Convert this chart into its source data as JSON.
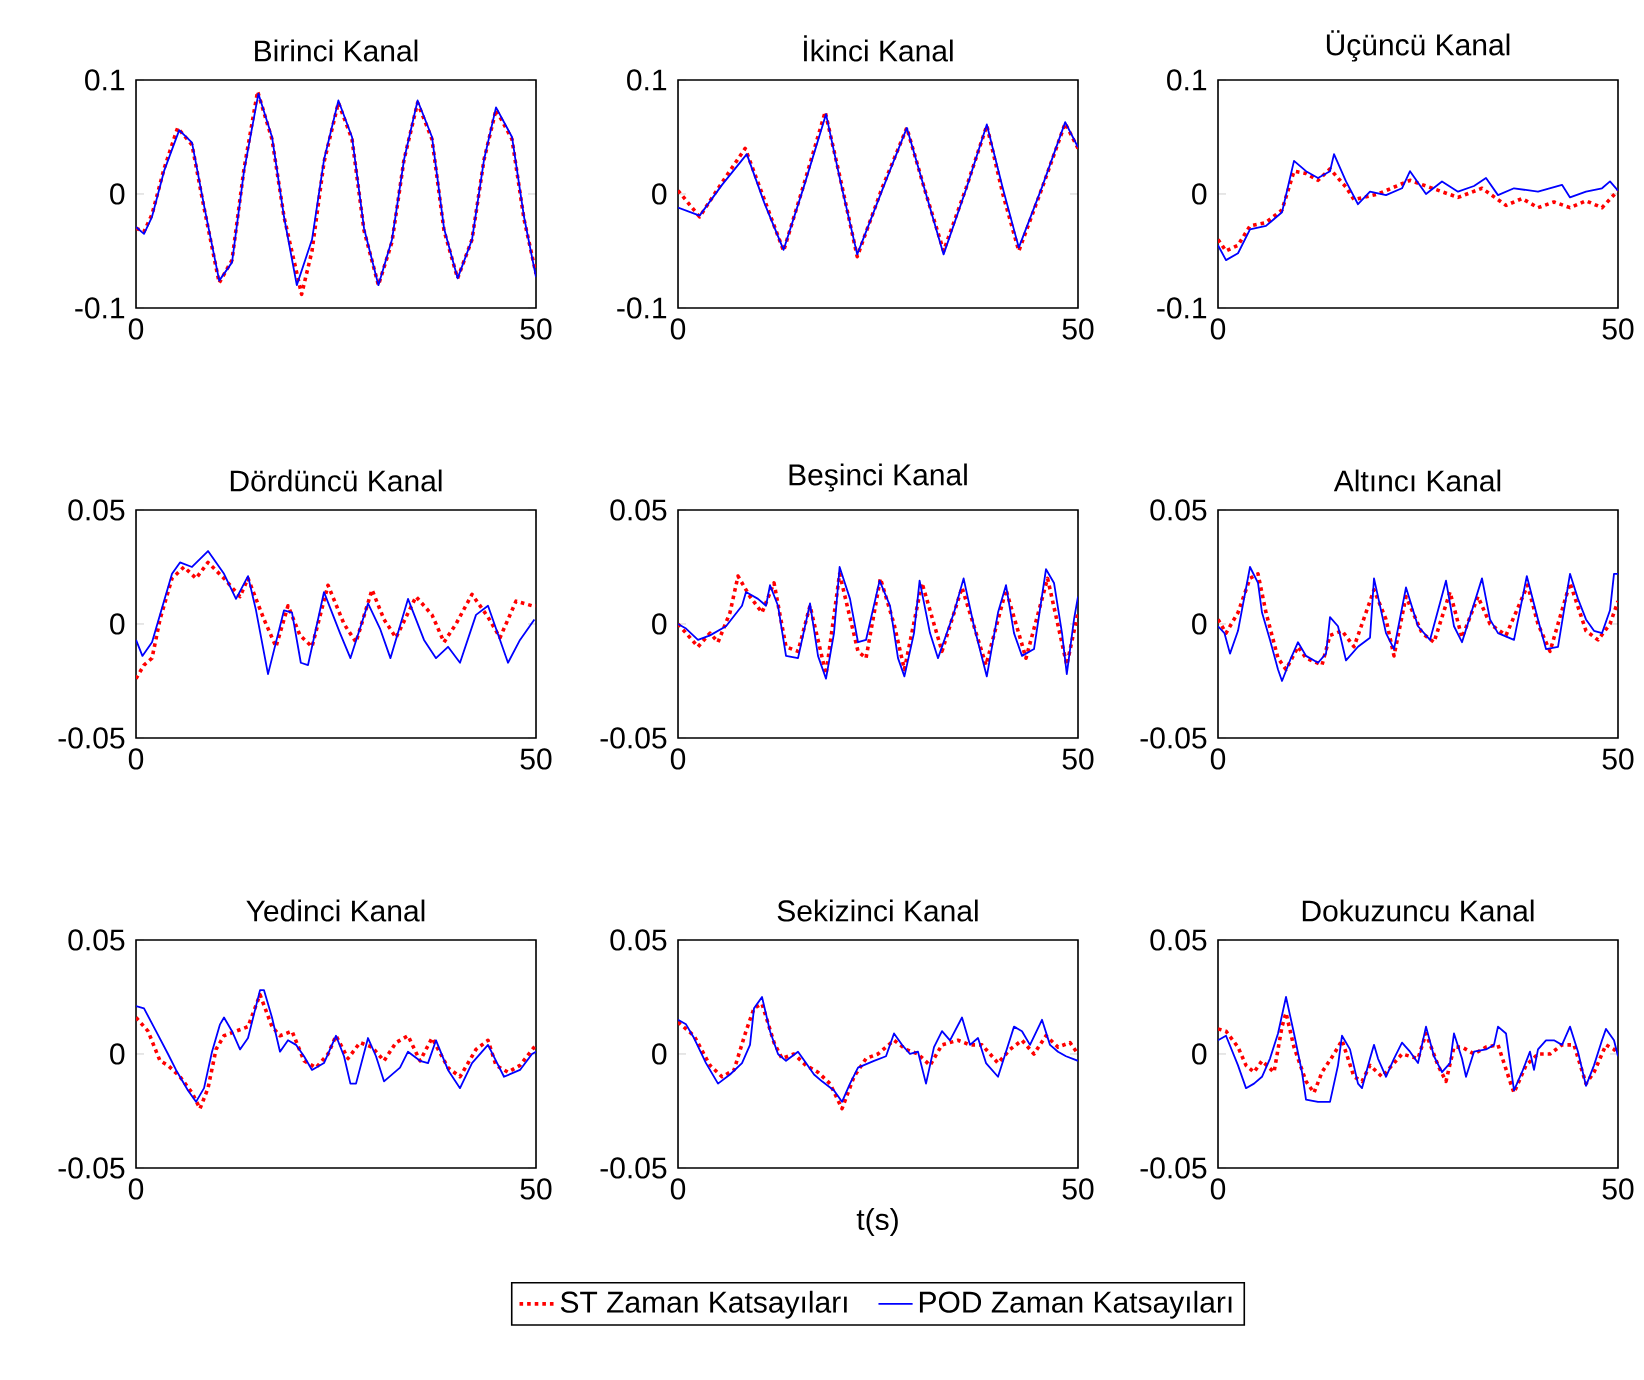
{
  "chart_data": [
    {
      "type": "line",
      "title": "Birinci Kanal",
      "xlim": [
        0,
        50
      ],
      "ylim": [
        -0.1,
        0.1
      ],
      "xticks": [
        0,
        50
      ],
      "yticks": [
        -0.1,
        0,
        0.1
      ],
      "series": [
        {
          "color": "#ff0000",
          "line_style": "dotted",
          "x": [
            0,
            1,
            2,
            3.5,
            5.2,
            7,
            8.5,
            10.4,
            12,
            13.5,
            15.2,
            17,
            18.5,
            20.7,
            22,
            23.5,
            25.3,
            27,
            28.5,
            30.3,
            32,
            33.5,
            35.2,
            37,
            38.5,
            40.2,
            42,
            43.5,
            45,
            47,
            48.5,
            50
          ],
          "values": [
            -0.03,
            -0.033,
            -0.018,
            0.022,
            0.058,
            0.043,
            -0.012,
            -0.078,
            -0.058,
            0.022,
            0.09,
            0.048,
            -0.02,
            -0.088,
            -0.05,
            0.028,
            0.08,
            0.048,
            -0.032,
            -0.08,
            -0.042,
            0.03,
            0.08,
            0.048,
            -0.032,
            -0.074,
            -0.04,
            0.03,
            0.074,
            0.048,
            -0.022,
            -0.07
          ]
        },
        {
          "color": "#0000ff",
          "line_style": "solid",
          "x": [
            0,
            1,
            2,
            3.5,
            5.4,
            7,
            8.5,
            10.4,
            12,
            13.5,
            15.3,
            17,
            18.5,
            20.1,
            22,
            23.5,
            25.3,
            27,
            28.5,
            30.3,
            32,
            33.5,
            35.2,
            37,
            38.5,
            40.2,
            42,
            43.5,
            45,
            47,
            48.5,
            50
          ],
          "values": [
            -0.029,
            -0.035,
            -0.02,
            0.02,
            0.056,
            0.045,
            -0.01,
            -0.076,
            -0.06,
            0.02,
            0.088,
            0.05,
            -0.02,
            -0.08,
            -0.04,
            0.03,
            0.082,
            0.05,
            -0.03,
            -0.08,
            -0.04,
            0.03,
            0.082,
            0.05,
            -0.03,
            -0.074,
            -0.04,
            0.03,
            0.076,
            0.05,
            -0.02,
            -0.073
          ]
        }
      ]
    },
    {
      "type": "line",
      "title": "İkinci Kanal",
      "xlim": [
        0,
        50
      ],
      "ylim": [
        -0.1,
        0.1
      ],
      "xticks": [
        0,
        50
      ],
      "yticks": [
        -0.1,
        0,
        0.1
      ],
      "series": [
        {
          "color": "#ff0000",
          "line_style": "dotted",
          "x": [
            0,
            2.7,
            5.5,
            8.4,
            10.8,
            13.2,
            15.8,
            18.4,
            20.4,
            22.4,
            25.5,
            28.6,
            31,
            33.2,
            36,
            38.6,
            40.6,
            42.6,
            45.5,
            48.4,
            50
          ],
          "values": [
            0.003,
            -0.02,
            0.01,
            0.04,
            -0.005,
            -0.05,
            0.01,
            0.072,
            0.01,
            -0.055,
            0.005,
            0.058,
            0.0,
            -0.05,
            0.005,
            0.06,
            0.0,
            -0.05,
            0.005,
            0.062,
            0.04
          ]
        },
        {
          "color": "#0000ff",
          "line_style": "solid",
          "x": [
            0,
            2.7,
            5.5,
            8.6,
            10.8,
            13.2,
            15.8,
            18.5,
            20.4,
            22.4,
            25.5,
            28.6,
            31,
            33.2,
            36,
            38.6,
            40.6,
            42.6,
            45.5,
            48.4,
            50
          ],
          "values": [
            -0.012,
            -0.019,
            0.008,
            0.035,
            -0.008,
            -0.049,
            0.008,
            0.07,
            0.008,
            -0.053,
            0.003,
            0.058,
            0.0,
            -0.053,
            0.004,
            0.061,
            0.005,
            -0.047,
            0.006,
            0.063,
            0.041
          ]
        }
      ]
    },
    {
      "type": "line",
      "title": "Üçüncü Kanal",
      "xlim": [
        0,
        50
      ],
      "ylim": [
        -0.1,
        0.1
      ],
      "xticks": [
        0,
        50
      ],
      "yticks": [
        -0.1,
        0,
        0.1
      ],
      "series": [
        {
          "color": "#ff0000",
          "line_style": "dotted",
          "x": [
            0,
            1,
            2.5,
            4,
            6,
            8,
            9.5,
            11,
            12.5,
            14,
            16,
            17,
            20,
            24,
            28,
            30,
            33,
            36,
            38,
            40,
            42,
            44,
            46,
            48,
            50
          ],
          "values": [
            -0.04,
            -0.05,
            -0.045,
            -0.028,
            -0.025,
            -0.014,
            0.02,
            0.018,
            0.012,
            0.022,
            0.006,
            -0.005,
            0.0,
            0.012,
            0.002,
            -0.003,
            0.005,
            -0.01,
            -0.004,
            -0.012,
            -0.007,
            -0.012,
            -0.006,
            -0.012,
            0.003
          ]
        },
        {
          "color": "#0000ff",
          "line_style": "solid",
          "x": [
            0,
            1,
            2.5,
            4,
            6,
            8,
            9,
            9.5,
            11,
            12.5,
            14,
            14.5,
            16,
            17.5,
            19,
            21,
            23,
            24,
            26,
            28,
            30,
            32,
            33.5,
            35,
            37,
            40,
            43,
            44,
            46,
            48,
            49,
            50
          ],
          "values": [
            -0.045,
            -0.058,
            -0.052,
            -0.031,
            -0.028,
            -0.016,
            0.014,
            0.029,
            0.02,
            0.014,
            0.02,
            0.035,
            0.011,
            -0.009,
            0.002,
            -0.001,
            0.005,
            0.02,
            0.0,
            0.011,
            0.002,
            0.007,
            0.014,
            -0.001,
            0.005,
            0.002,
            0.008,
            -0.003,
            0.002,
            0.005,
            0.011,
            0.003
          ]
        }
      ]
    },
    {
      "type": "line",
      "title": "Dördüncü Kanal",
      "xlim": [
        0,
        50
      ],
      "ylim": [
        -0.05,
        0.05
      ],
      "xticks": [
        0,
        50
      ],
      "yticks": [
        -0.05,
        0,
        0.05
      ],
      "series": [
        {
          "color": "#ff0000",
          "line_style": "dotted",
          "x": [
            0,
            1,
            2,
            3,
            4.5,
            6,
            7.5,
            9,
            11,
            13,
            14,
            16,
            17.5,
            19,
            20.5,
            22,
            24,
            26,
            27.5,
            29.5,
            31,
            32.5,
            35,
            37,
            38.5,
            40,
            42,
            44,
            45.5,
            47.5,
            49.5,
            50
          ],
          "values": [
            -0.024,
            -0.018,
            -0.015,
            0.002,
            0.02,
            0.025,
            0.02,
            0.027,
            0.02,
            0.012,
            0.02,
            0.002,
            -0.01,
            0.008,
            -0.005,
            -0.01,
            0.017,
            0.0,
            -0.008,
            0.015,
            0.002,
            -0.006,
            0.012,
            0.004,
            -0.008,
            0.0,
            0.013,
            0.003,
            -0.006,
            0.01,
            0.008,
            0.008
          ]
        },
        {
          "color": "#0000ff",
          "line_style": "solid",
          "x": [
            0,
            0.8,
            2,
            3,
            4.5,
            5.5,
            7,
            9,
            11,
            12.5,
            14,
            15,
            16.5,
            18.5,
            19.5,
            20.6,
            21.5,
            23.5,
            25.5,
            26.8,
            29,
            30.5,
            31.8,
            34,
            36,
            37.5,
            39,
            40.5,
            42.5,
            44,
            46.5,
            48,
            49.8
          ],
          "values": [
            -0.007,
            -0.014,
            -0.008,
            0.004,
            0.022,
            0.027,
            0.025,
            0.032,
            0.022,
            0.011,
            0.021,
            0.006,
            -0.022,
            0.006,
            0.005,
            -0.017,
            -0.018,
            0.014,
            -0.004,
            -0.015,
            0.009,
            -0.002,
            -0.015,
            0.011,
            -0.007,
            -0.015,
            -0.01,
            -0.017,
            0.004,
            0.008,
            -0.017,
            -0.007,
            0.002
          ]
        }
      ]
    },
    {
      "type": "line",
      "title": "Beşinci Kanal",
      "xlim": [
        0,
        50
      ],
      "ylim": [
        -0.05,
        0.05
      ],
      "xticks": [
        0,
        50
      ],
      "yticks": [
        -0.05,
        0,
        0.05
      ],
      "series": [
        {
          "color": "#ff0000",
          "line_style": "dotted",
          "x": [
            0,
            2.5,
            4,
            5,
            6.5,
            7.5,
            9,
            10.5,
            12,
            13.5,
            15,
            16.5,
            18.5,
            20.2,
            22.5,
            23.5,
            25.3,
            27,
            28.3,
            30.5,
            33,
            35.5,
            38.5,
            41,
            43.5,
            46.2,
            48.6,
            50
          ],
          "values": [
            0.0,
            -0.01,
            -0.004,
            -0.008,
            0.005,
            0.021,
            0.012,
            0.005,
            0.018,
            -0.01,
            -0.012,
            0.008,
            -0.022,
            0.022,
            -0.012,
            -0.015,
            0.02,
            0.0,
            -0.02,
            0.018,
            -0.012,
            0.016,
            -0.018,
            0.015,
            -0.015,
            0.02,
            -0.018,
            0.005
          ]
        },
        {
          "color": "#0000ff",
          "line_style": "solid",
          "x": [
            0,
            1,
            2.5,
            4,
            6,
            8,
            8.5,
            10,
            11,
            11.5,
            12.5,
            13.5,
            15,
            16.5,
            17.5,
            18.5,
            19.5,
            20.2,
            21.5,
            22.5,
            23.5,
            25.2,
            26.5,
            27.5,
            28.3,
            29.5,
            30.2,
            31.5,
            32.5,
            34.5,
            35.7,
            37,
            38.6,
            40,
            41,
            42,
            43,
            44.5,
            46,
            47,
            48,
            48.6,
            49.5,
            50
          ],
          "values": [
            0.0,
            -0.002,
            -0.007,
            -0.005,
            -0.001,
            0.008,
            0.014,
            0.011,
            0.008,
            0.017,
            0.008,
            -0.014,
            -0.015,
            0.009,
            -0.014,
            -0.024,
            -0.004,
            0.025,
            0.011,
            -0.008,
            -0.007,
            0.019,
            0.008,
            -0.015,
            -0.023,
            -0.004,
            0.019,
            -0.004,
            -0.015,
            0.005,
            0.02,
            -0.001,
            -0.023,
            0.005,
            0.017,
            -0.004,
            -0.014,
            -0.011,
            0.024,
            0.018,
            -0.004,
            -0.022,
            0.002,
            0.012
          ]
        }
      ]
    },
    {
      "type": "line",
      "title": "Altıncı Kanal",
      "xlim": [
        0,
        50
      ],
      "ylim": [
        -0.05,
        0.05
      ],
      "xticks": [
        0,
        50
      ],
      "yticks": [
        -0.05,
        0,
        0.05
      ],
      "series": [
        {
          "color": "#ff0000",
          "line_style": "dotted",
          "x": [
            0,
            1,
            2.5,
            4,
            5,
            6,
            7.5,
            8.5,
            10,
            11,
            13,
            14,
            15.5,
            17,
            19.5,
            21,
            22,
            23.5,
            25.5,
            27,
            29,
            30.5,
            32.5,
            34,
            36,
            38.7,
            40,
            41.5,
            44,
            46,
            47.5,
            49,
            50
          ],
          "values": [
            0.002,
            -0.004,
            0.005,
            0.02,
            0.022,
            0.005,
            -0.015,
            -0.02,
            -0.01,
            -0.015,
            -0.018,
            -0.005,
            -0.003,
            -0.01,
            0.015,
            0.002,
            -0.014,
            0.012,
            -0.004,
            -0.008,
            0.014,
            -0.006,
            0.012,
            0.0,
            -0.005,
            0.017,
            0.0,
            -0.012,
            0.018,
            -0.003,
            -0.007,
            0.0,
            0.01
          ]
        },
        {
          "color": "#0000ff",
          "line_style": "solid",
          "x": [
            0,
            0.8,
            1.5,
            2.5,
            4,
            5,
            5.5,
            6.5,
            7.5,
            8,
            9,
            10,
            11,
            12.5,
            13.5,
            14,
            15,
            16,
            17.5,
            19,
            19.5,
            21,
            22,
            23.5,
            25,
            26.5,
            28.5,
            29.5,
            30.5,
            33,
            34,
            35,
            37,
            38.6,
            40,
            41,
            42.5,
            44,
            45,
            46,
            47,
            48,
            49,
            49.5,
            50
          ],
          "values": [
            -0.001,
            -0.004,
            -0.013,
            -0.003,
            0.025,
            0.018,
            0.005,
            -0.007,
            -0.02,
            -0.025,
            -0.016,
            -0.008,
            -0.014,
            -0.017,
            -0.013,
            0.003,
            -0.001,
            -0.016,
            -0.01,
            -0.006,
            0.02,
            -0.004,
            -0.011,
            0.016,
            -0.001,
            -0.007,
            0.019,
            -0.001,
            -0.008,
            0.02,
            0.002,
            -0.004,
            -0.007,
            0.021,
            0.002,
            -0.011,
            -0.01,
            0.022,
            0.011,
            0.002,
            -0.003,
            -0.004,
            0.006,
            0.022,
            0.022
          ]
        }
      ]
    },
    {
      "type": "line",
      "title": "Yedinci Kanal",
      "xlim": [
        0,
        50
      ],
      "ylim": [
        -0.05,
        0.05
      ],
      "xticks": [
        0,
        50
      ],
      "yticks": [
        -0.05,
        0,
        0.05
      ],
      "series": [
        {
          "color": "#ff0000",
          "line_style": "dotted",
          "x": [
            0,
            1.5,
            3,
            4,
            5.5,
            7,
            8,
            9,
            10,
            11,
            12.5,
            14,
            15.5,
            17,
            18,
            19.5,
            21,
            22.5,
            24,
            25,
            26.5,
            28,
            29.5,
            31,
            32.5,
            34,
            35.5,
            37,
            39,
            40.5,
            42.5,
            44,
            45,
            46.5,
            48,
            50
          ],
          "values": [
            0.016,
            0.01,
            -0.003,
            -0.005,
            -0.01,
            -0.017,
            -0.024,
            -0.015,
            0.002,
            0.008,
            0.01,
            0.012,
            0.026,
            0.012,
            0.008,
            0.01,
            -0.003,
            -0.006,
            0.0,
            0.008,
            -0.002,
            0.005,
            0.003,
            -0.003,
            0.005,
            0.008,
            -0.003,
            0.007,
            -0.006,
            -0.01,
            0.002,
            0.006,
            -0.005,
            -0.008,
            -0.005,
            0.004
          ]
        },
        {
          "color": "#0000ff",
          "line_style": "solid",
          "x": [
            0,
            1,
            2.5,
            4,
            5,
            6.5,
            7.5,
            8.5,
            9.5,
            10.5,
            11,
            12,
            13,
            14,
            15.5,
            16,
            17,
            18,
            19,
            20,
            21,
            22,
            23.5,
            25,
            26,
            26.8,
            27.5,
            29,
            30,
            31,
            33,
            34,
            35.5,
            36.5,
            37.5,
            39,
            40.5,
            42,
            44,
            45,
            46,
            48,
            49.5,
            50
          ],
          "values": [
            0.021,
            0.02,
            0.01,
            0.0,
            -0.007,
            -0.016,
            -0.021,
            -0.015,
            0.001,
            0.013,
            0.016,
            0.01,
            0.002,
            0.007,
            0.028,
            0.028,
            0.016,
            0.001,
            0.006,
            0.004,
            -0.001,
            -0.007,
            -0.004,
            0.008,
            -0.001,
            -0.013,
            -0.013,
            0.007,
            -0.001,
            -0.012,
            -0.006,
            0.001,
            -0.003,
            -0.004,
            0.006,
            -0.007,
            -0.015,
            -0.004,
            0.004,
            -0.003,
            -0.01,
            -0.007,
            0.0,
            0.001
          ]
        }
      ]
    },
    {
      "type": "line",
      "title": "Sekizinci Kanal",
      "xlabel": "t(s)",
      "legend": "bottom",
      "xlim": [
        0,
        50
      ],
      "ylim": [
        -0.05,
        0.05
      ],
      "xticks": [
        0,
        50
      ],
      "yticks": [
        -0.05,
        0,
        0.05
      ],
      "series": [
        {
          "name": "ST Zaman Katsayıları",
          "color": "#ff0000",
          "line_style": "dotted",
          "x": [
            0,
            2,
            4,
            5.5,
            7,
            8.5,
            9.5,
            10.5,
            12,
            13,
            14.5,
            16,
            17.5,
            19,
            20.5,
            22,
            23.5,
            25,
            27,
            28.5,
            30,
            31.5,
            33,
            35,
            36.5,
            38,
            40,
            41.5,
            43,
            44.5,
            46,
            47.5,
            49,
            50
          ],
          "values": [
            0.014,
            0.008,
            -0.005,
            -0.01,
            -0.007,
            0.01,
            0.02,
            0.022,
            0.005,
            -0.002,
            0.0,
            -0.005,
            -0.008,
            -0.013,
            -0.024,
            -0.01,
            -0.002,
            0.0,
            0.006,
            0.002,
            0.0,
            -0.005,
            0.004,
            0.006,
            0.004,
            0.004,
            -0.004,
            0.002,
            0.006,
            0.0,
            0.008,
            0.003,
            0.005,
            0.0
          ]
        },
        {
          "name": "POD Zaman Katsayıları",
          "color": "#0000ff",
          "line_style": "solid",
          "x": [
            0,
            1,
            2,
            3.5,
            5,
            6.5,
            8,
            9,
            9.5,
            10.5,
            11.5,
            12.5,
            13.5,
            15,
            16,
            17,
            18,
            19.5,
            20.5,
            21.5,
            22.5,
            24.5,
            26,
            27,
            28,
            29,
            30,
            31,
            32,
            33,
            34,
            35.5,
            36.5,
            37.5,
            38.5,
            40,
            41,
            42,
            43,
            44,
            45.5,
            46.5,
            47.5,
            48.5,
            50
          ],
          "values": [
            0.015,
            0.013,
            0.007,
            -0.004,
            -0.013,
            -0.009,
            -0.004,
            0.004,
            0.02,
            0.025,
            0.01,
            0.0,
            -0.003,
            0.001,
            -0.004,
            -0.009,
            -0.012,
            -0.016,
            -0.021,
            -0.013,
            -0.006,
            -0.003,
            -0.001,
            0.009,
            0.004,
            0.0,
            0.001,
            -0.013,
            0.003,
            0.01,
            0.006,
            0.016,
            0.004,
            0.007,
            -0.004,
            -0.01,
            0.001,
            0.012,
            0.01,
            0.004,
            0.015,
            0.004,
            0.001,
            -0.001,
            -0.003
          ]
        }
      ]
    },
    {
      "type": "line",
      "title": "Dokuzuncu Kanal",
      "xlim": [
        0,
        50
      ],
      "ylim": [
        -0.05,
        0.05
      ],
      "xticks": [
        0,
        50
      ],
      "yticks": [
        -0.05,
        0,
        0.05
      ],
      "series": [
        {
          "color": "#ff0000",
          "line_style": "dotted",
          "x": [
            0,
            1,
            2.5,
            3.5,
            4.5,
            5.5,
            7,
            8,
            8.5,
            9.5,
            11,
            12,
            13,
            14.5,
            15.5,
            17,
            18,
            19,
            20.5,
            22,
            23,
            25,
            26,
            27.5,
            28.5,
            29.5,
            30.5,
            32,
            33.5,
            35,
            36.5,
            37,
            38.5,
            40,
            41.5,
            43,
            44.5,
            46,
            47,
            48.5,
            49.5,
            50
          ],
          "values": [
            0.011,
            0.01,
            0.003,
            -0.005,
            -0.008,
            -0.003,
            -0.008,
            0.012,
            0.018,
            0.003,
            -0.012,
            -0.017,
            -0.008,
            0.0,
            0.006,
            -0.01,
            -0.012,
            -0.005,
            -0.01,
            -0.004,
            0.0,
            -0.002,
            0.009,
            -0.005,
            -0.012,
            0.003,
            0.003,
            0.0,
            0.003,
            0.004,
            -0.012,
            -0.017,
            -0.005,
            0.0,
            0.0,
            0.004,
            0.004,
            -0.013,
            -0.008,
            0.004,
            0.002,
            0.0
          ]
        },
        {
          "color": "#0000ff",
          "line_style": "solid",
          "x": [
            0,
            1,
            2.5,
            3.5,
            4.5,
            5.5,
            6.5,
            7.5,
            8.5,
            9.5,
            10.5,
            11,
            12.5,
            14,
            15,
            15.5,
            16.5,
            17.5,
            18,
            19,
            19.5,
            20,
            21,
            22,
            23,
            24,
            25,
            26,
            27,
            28,
            29,
            29.5,
            30.5,
            31,
            32,
            33.5,
            34.5,
            35,
            36,
            37,
            38,
            39,
            39.5,
            40,
            41,
            42,
            43,
            44,
            45,
            46,
            47,
            48,
            48.5,
            49.5,
            50
          ],
          "values": [
            0.006,
            0.008,
            -0.005,
            -0.015,
            -0.013,
            -0.01,
            -0.002,
            0.009,
            0.025,
            0.009,
            -0.008,
            -0.02,
            -0.021,
            -0.021,
            -0.005,
            0.008,
            0.002,
            -0.013,
            -0.015,
            -0.002,
            0.004,
            -0.002,
            -0.01,
            -0.002,
            0.005,
            0.001,
            -0.004,
            0.012,
            -0.001,
            -0.008,
            -0.004,
            0.009,
            -0.002,
            -0.01,
            0.001,
            0.002,
            0.004,
            0.012,
            0.009,
            -0.016,
            -0.008,
            0.001,
            -0.007,
            0.002,
            0.006,
            0.006,
            0.004,
            0.012,
            0.001,
            -0.014,
            -0.005,
            0.006,
            0.011,
            0.006,
            -0.001
          ]
        }
      ]
    }
  ]
}
